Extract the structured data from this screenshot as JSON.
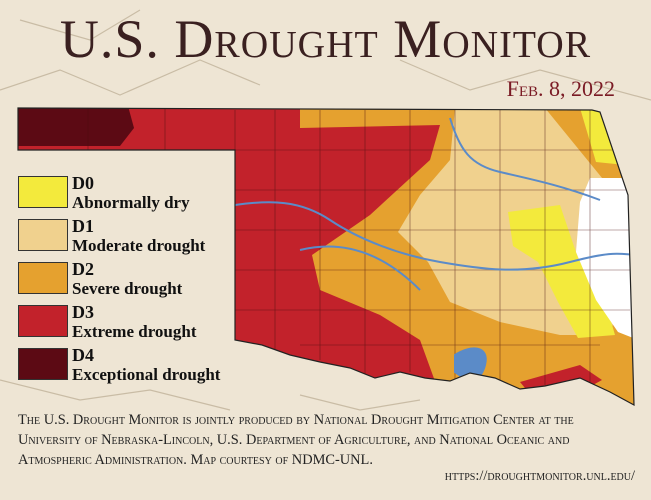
{
  "header": {
    "title": "U.S. Drought Monitor",
    "date": "Feb. 8, 2022"
  },
  "legend": [
    {
      "code": "D0",
      "label": "Abnormally dry",
      "color": "#f3ea3c"
    },
    {
      "code": "D1",
      "label": "Moderate drought",
      "color": "#f0d18e"
    },
    {
      "code": "D2",
      "label": "Severe drought",
      "color": "#e5a12f"
    },
    {
      "code": "D3",
      "label": "Extreme drought",
      "color": "#c2222b"
    },
    {
      "code": "D4",
      "label": "Exceptional drought",
      "color": "#5c0a14"
    }
  ],
  "footer": {
    "credit": "The U.S. Drought Monitor is jointly produced by National Drought Mitigation Center at the University of Nebraska-Lincoln, U.S. Department of Agriculture, and National Oceanic and Atmospheric Administration. Map courtesy of NDMC-UNL.",
    "url": "https://droughtmonitor.unl.edu/"
  }
}
